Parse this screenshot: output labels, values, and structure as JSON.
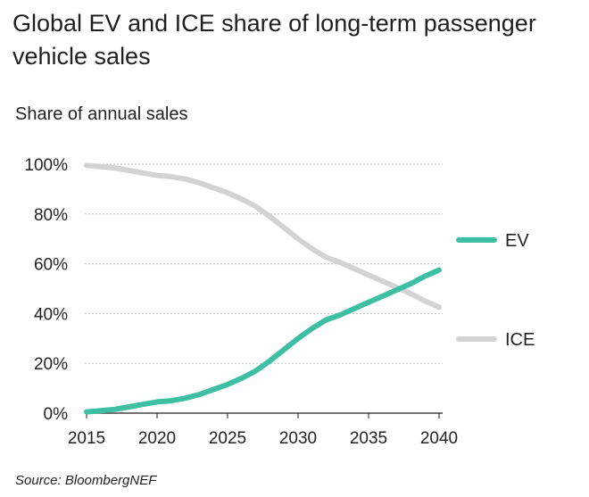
{
  "title": "Global EV and ICE share of long-term passenger vehicle sales",
  "subtitle": "Share of annual sales",
  "source": "Source: BloombergNEF",
  "colors": {
    "ev": "#3cbfa3",
    "ice": "#d3d3d3",
    "grid": "#bdbdbd",
    "axis": "#444444"
  },
  "chart_data": {
    "type": "line",
    "title": "Global EV and ICE share of long-term passenger vehicle sales",
    "ylabel": "Share of annual sales",
    "xlabel": "",
    "xlim": [
      2015,
      2040
    ],
    "ylim": [
      0,
      100
    ],
    "x_ticks": [
      2015,
      2020,
      2025,
      2030,
      2035,
      2040
    ],
    "y_ticks": [
      0,
      20,
      40,
      60,
      80,
      100
    ],
    "x_tick_labels": [
      "2015",
      "2020",
      "2025",
      "2030",
      "2035",
      "2040"
    ],
    "y_tick_labels": [
      "0%",
      "20%",
      "40%",
      "60%",
      "80%",
      "100%"
    ],
    "grid": true,
    "legend_position": "right",
    "x": [
      2015,
      2016,
      2017,
      2018,
      2019,
      2020,
      2021,
      2022,
      2023,
      2024,
      2025,
      2026,
      2027,
      2028,
      2029,
      2030,
      2031,
      2032,
      2033,
      2034,
      2035,
      2036,
      2037,
      2038,
      2039,
      2040
    ],
    "series": [
      {
        "name": "EV",
        "values": [
          0.5,
          1,
          1.5,
          2.5,
          3.5,
          4.5,
          5,
          6,
          7.5,
          9.5,
          11.5,
          14,
          17,
          21,
          25.5,
          30,
          34,
          37.5,
          39.5,
          42,
          44.5,
          47,
          49.5,
          52,
          55,
          57.5
        ]
      },
      {
        "name": "ICE",
        "values": [
          99.5,
          99,
          98.5,
          97.5,
          96.5,
          95.5,
          95,
          94,
          92.5,
          90.5,
          88.5,
          86,
          83,
          79,
          74.5,
          70,
          66,
          62.5,
          60.5,
          58,
          55.5,
          53,
          50.5,
          48,
          45,
          42.5
        ]
      }
    ]
  }
}
